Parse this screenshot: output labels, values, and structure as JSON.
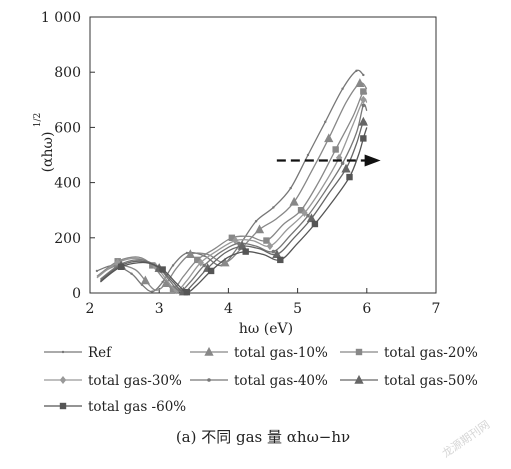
{
  "chart_data": {
    "type": "line",
    "title": "",
    "xlabel": "hω (eV)",
    "ylabel": "(αhω)",
    "ylabel_superscript": "1/2",
    "xlim": [
      2,
      7
    ],
    "ylim": [
      0,
      1000
    ],
    "xticks": [
      2,
      3,
      4,
      5,
      6,
      7
    ],
    "yticks": [
      0,
      200,
      400,
      600,
      800,
      1000
    ],
    "xtick_labels": [
      "2",
      "3",
      "4",
      "5",
      "6",
      "7"
    ],
    "ytick_labels": [
      "0",
      "200",
      "400",
      "600",
      "800",
      "1 000"
    ],
    "grid": false,
    "legend_placement": "bottom",
    "annotation": {
      "type": "dashed-arrow",
      "x_start": 4.7,
      "x_end": 6.2,
      "y": 480
    },
    "series": [
      {
        "name": "Ref",
        "marker": "none",
        "color": "#777777",
        "x": [
          2.1,
          2.35,
          2.6,
          2.75,
          2.9,
          3.05,
          3.2,
          3.4,
          3.65,
          3.9,
          4.15,
          4.4,
          4.65,
          4.9,
          5.15,
          5.4,
          5.65,
          5.85,
          5.95
        ],
        "y": [
          80,
          100,
          70,
          30,
          5,
          40,
          100,
          145,
          135,
          100,
          170,
          260,
          310,
          380,
          500,
          620,
          740,
          805,
          790
        ]
      },
      {
        "name": "total gas-10%",
        "marker": "triangle",
        "color": "#888888",
        "x": [
          2.15,
          2.4,
          2.65,
          2.8,
          2.95,
          3.1,
          3.25,
          3.45,
          3.7,
          3.95,
          4.2,
          4.45,
          4.7,
          4.95,
          5.2,
          5.45,
          5.7,
          5.9,
          6.0
        ],
        "y": [
          70,
          100,
          85,
          45,
          10,
          35,
          90,
          140,
          140,
          110,
          165,
          230,
          270,
          330,
          440,
          560,
          690,
          760,
          740
        ]
      },
      {
        "name": "total gas-20%",
        "marker": "square",
        "color": "#888888",
        "x": [
          2.1,
          2.4,
          2.7,
          2.9,
          3.05,
          3.2,
          3.35,
          3.55,
          3.8,
          4.05,
          4.3,
          4.55,
          4.8,
          5.05,
          5.3,
          5.55,
          5.8,
          5.95,
          6.0
        ],
        "y": [
          60,
          115,
          130,
          100,
          55,
          15,
          60,
          120,
          160,
          200,
          205,
          190,
          250,
          300,
          400,
          520,
          640,
          730,
          720
        ]
      },
      {
        "name": "total gas-30%",
        "marker": "diamond",
        "color": "#999999",
        "x": [
          2.1,
          2.4,
          2.7,
          2.95,
          3.1,
          3.25,
          3.4,
          3.6,
          3.85,
          4.1,
          4.35,
          4.6,
          4.85,
          5.1,
          5.35,
          5.6,
          5.8,
          5.95,
          6.0
        ],
        "y": [
          55,
          110,
          125,
          95,
          50,
          10,
          45,
          110,
          155,
          190,
          190,
          170,
          230,
          290,
          380,
          490,
          610,
          700,
          690
        ]
      },
      {
        "name": "total gas-40%",
        "marker": "dot",
        "color": "#777777",
        "x": [
          2.15,
          2.45,
          2.75,
          3.0,
          3.15,
          3.3,
          3.45,
          3.65,
          3.9,
          4.15,
          4.4,
          4.65,
          4.9,
          5.15,
          5.4,
          5.65,
          5.85,
          5.95,
          6.0
        ],
        "y": [
          50,
          105,
          120,
          90,
          45,
          8,
          40,
          100,
          150,
          180,
          170,
          150,
          210,
          280,
          370,
          470,
          580,
          680,
          660
        ]
      },
      {
        "name": "total gas-50%",
        "marker": "triangle-filled",
        "color": "#666666",
        "x": [
          2.15,
          2.45,
          2.75,
          3.0,
          3.2,
          3.35,
          3.5,
          3.7,
          3.95,
          4.2,
          4.45,
          4.7,
          4.95,
          5.2,
          5.45,
          5.7,
          5.85,
          5.95,
          6.0
        ],
        "y": [
          45,
          100,
          115,
          90,
          40,
          5,
          35,
          90,
          145,
          170,
          160,
          140,
          200,
          270,
          360,
          450,
          540,
          620,
          610
        ]
      },
      {
        "name": "total gas -60%",
        "marker": "square-filled",
        "color": "#555555",
        "x": [
          2.15,
          2.45,
          2.8,
          3.05,
          3.25,
          3.4,
          3.55,
          3.75,
          4.0,
          4.25,
          4.5,
          4.75,
          5.0,
          5.25,
          5.5,
          5.75,
          5.88,
          5.95,
          6.0
        ],
        "y": [
          40,
          95,
          110,
          85,
          35,
          3,
          30,
          80,
          130,
          150,
          140,
          120,
          180,
          250,
          330,
          420,
          500,
          560,
          600
        ]
      }
    ]
  },
  "caption": "(a)  不同 gas 量 αhω−hν",
  "watermark": "龙源期刊网"
}
